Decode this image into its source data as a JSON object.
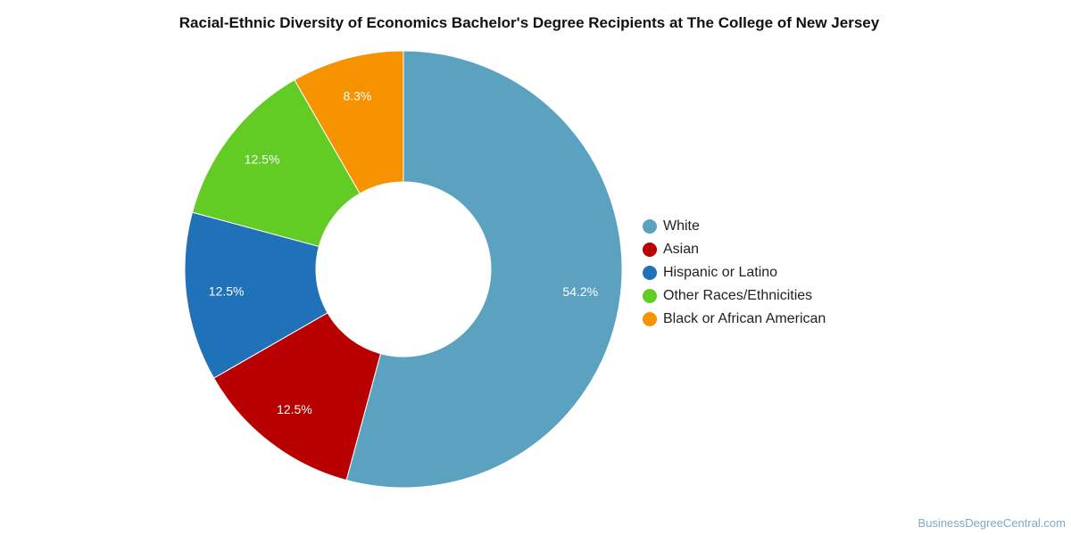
{
  "chart_data": {
    "type": "pie",
    "variant": "donut",
    "title": "Racial-Ethnic Diversity of Economics Bachelor's Degree Recipients at The College of New Jersey",
    "slices": [
      {
        "label": "White",
        "value": 54.2,
        "display": "54.2%",
        "color": "#5ba1c0"
      },
      {
        "label": "Asian",
        "value": 12.5,
        "display": "12.5%",
        "color": "#b80000"
      },
      {
        "label": "Hispanic or Latino",
        "value": 12.5,
        "display": "12.5%",
        "color": "#1f72b8"
      },
      {
        "label": "Other Races/Ethnicities",
        "value": 12.5,
        "display": "12.5%",
        "color": "#62cc24"
      },
      {
        "label": "Black or African American",
        "value": 8.3,
        "display": "8.3%",
        "color": "#f79200"
      }
    ],
    "legend_position": "right"
  },
  "watermark": "BusinessDegreeCentral.com"
}
